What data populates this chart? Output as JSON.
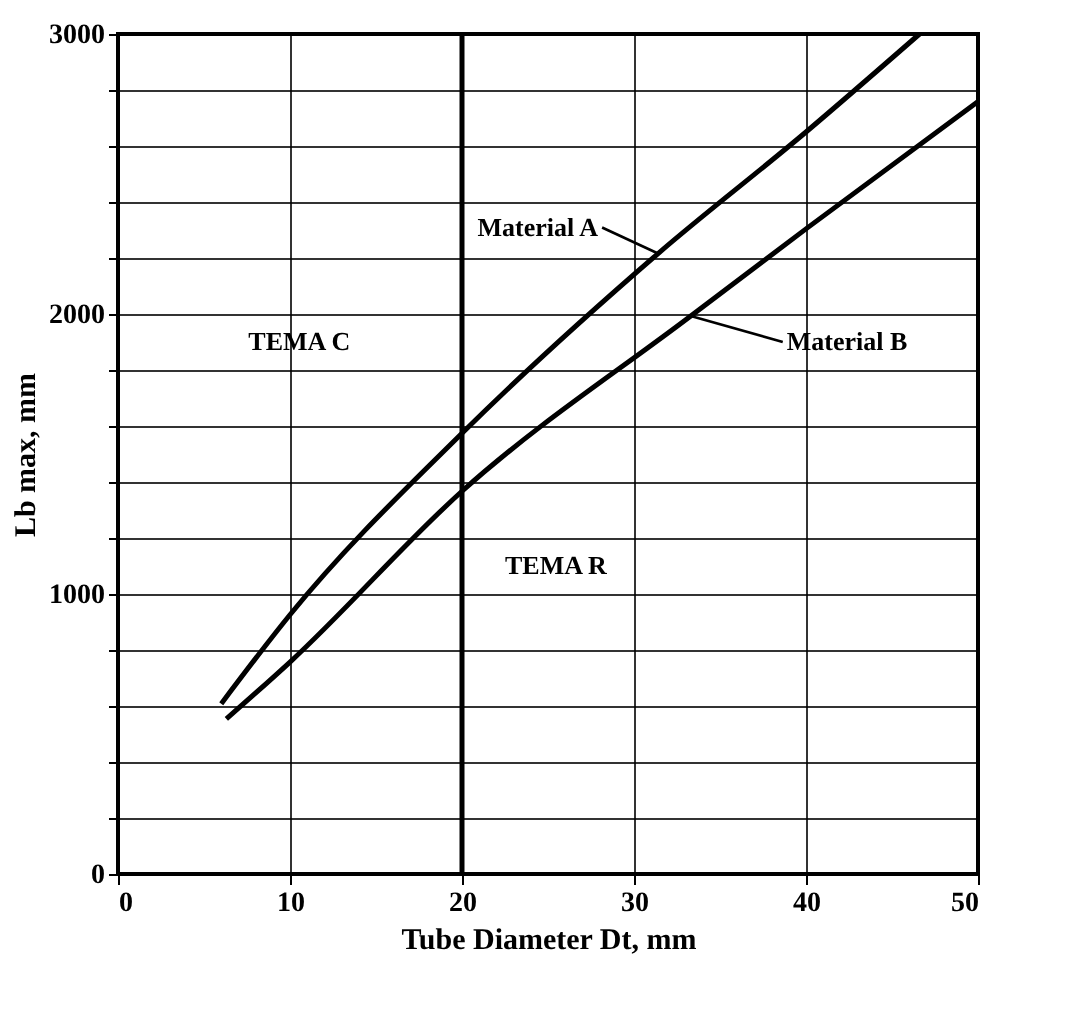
{
  "chart_data": {
    "type": "line",
    "xlabel": "Tube Diameter Dt, mm",
    "ylabel": "Lb max, mm",
    "xlim": [
      0,
      50
    ],
    "xticks": [
      0,
      10,
      20,
      30,
      40,
      50
    ],
    "ylim": [
      0,
      3000
    ],
    "yticks": [
      0,
      {
        "value": 200,
        "label": null
      },
      {
        "value": 400,
        "label": null
      },
      {
        "value": 600,
        "label": null
      },
      {
        "value": 800,
        "label": null
      },
      1000,
      {
        "value": 1200,
        "label": null
      },
      {
        "value": 1400,
        "label": null
      },
      {
        "value": 1600,
        "label": null
      },
      {
        "value": 1800,
        "label": null
      },
      2000,
      {
        "value": 2200,
        "label": null
      },
      {
        "value": 2400,
        "label": null
      },
      {
        "value": 2600,
        "label": null
      },
      {
        "value": 2800,
        "label": null
      },
      3000
    ],
    "grid": true,
    "marker": "none",
    "line_style": "solid",
    "series": [
      {
        "color": "#000000",
        "x": [
          6,
          10,
          20,
          31.4,
          40,
          46.6
        ],
        "values": [
          608,
          926,
          1574,
          2216,
          2650,
          3000
        ]
      },
      {
        "color": "#000000",
        "x": [
          6.3,
          10,
          20,
          33.3,
          40,
          50
        ],
        "values": [
          554,
          757,
          1367,
          1993,
          2304,
          2759
        ]
      }
    ],
    "ref_lines": [
      {
        "axis": "x",
        "value": 20,
        "color": "#000000"
      }
    ],
    "annotations": [
      {
        "text": "Material A",
        "x": 31.4,
        "y": 2216
      },
      {
        "text": "Material B",
        "x": 33.3,
        "y": 1993
      },
      "TEMA C",
      "TEMA R"
    ]
  }
}
